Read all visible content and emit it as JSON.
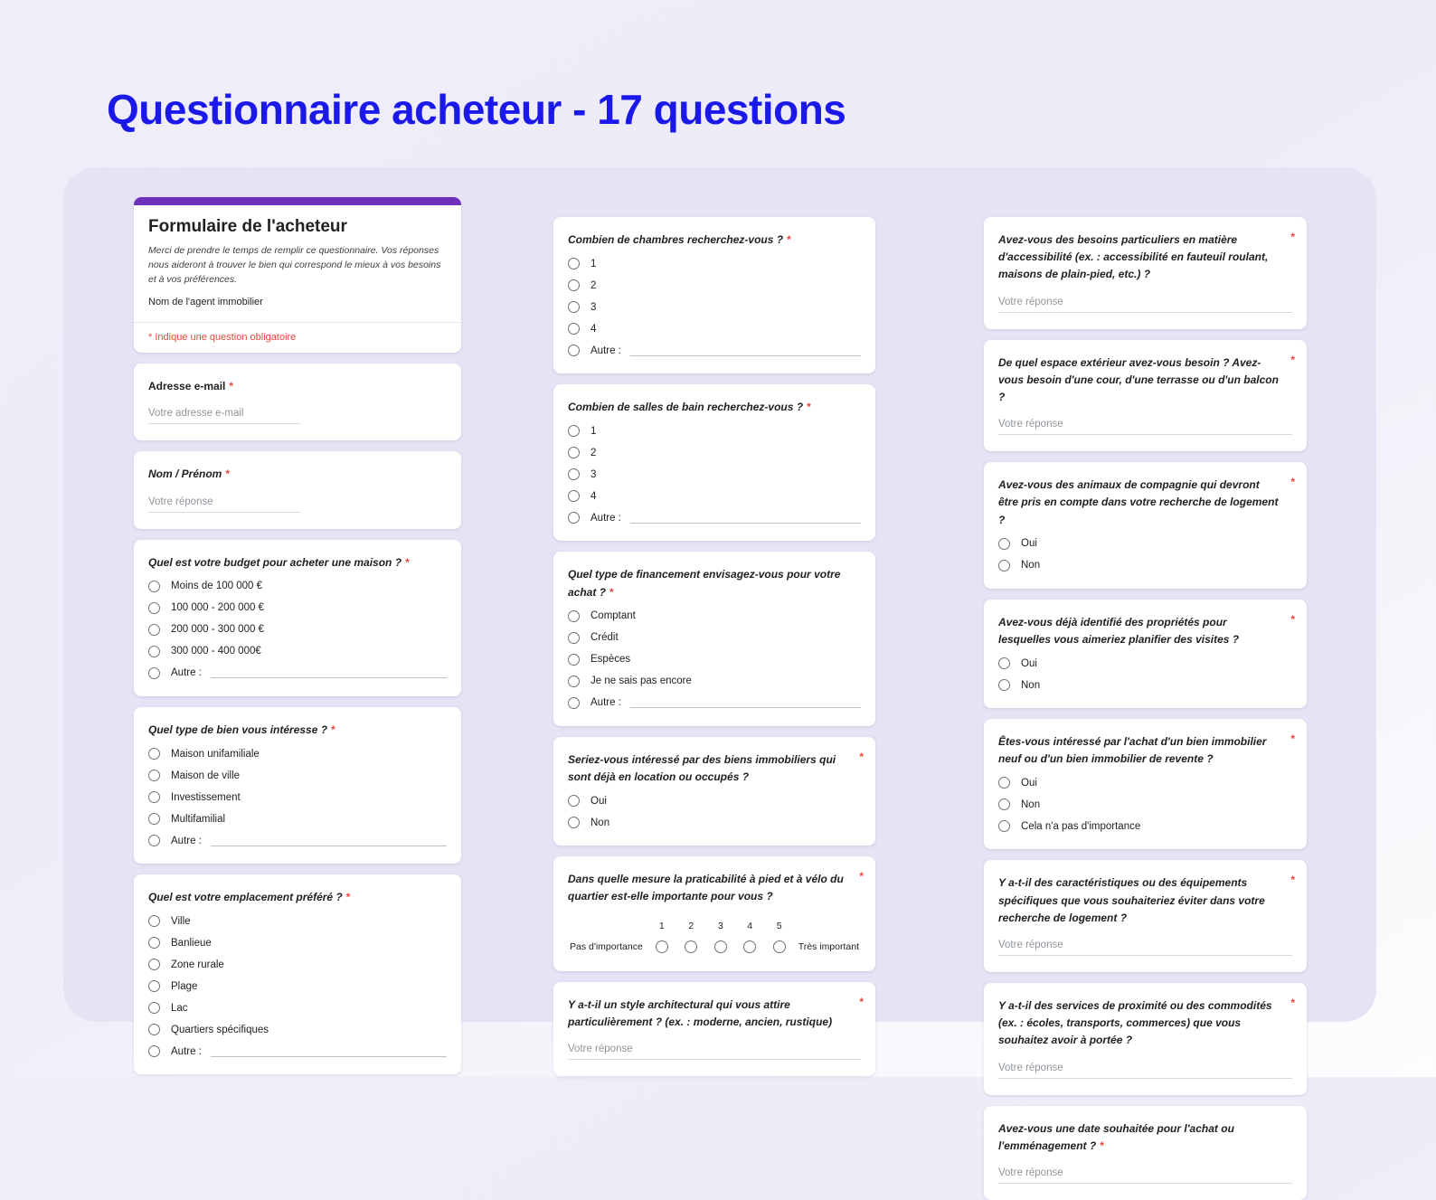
{
  "page": {
    "title": "Questionnaire acheteur - 17 questions"
  },
  "colors": {
    "title_blue": "#1b18ea",
    "accent_purple": "#6d30ba",
    "required_red": "#e8463c",
    "panel_lavender": "#e6e3f5"
  },
  "form": {
    "header": {
      "title": "Formulaire de l'acheteur",
      "description": "Merci de prendre le temps de remplir ce questionnaire. Vos réponses nous aideront à trouver le bien qui correspond le mieux à vos besoins et à vos préférences.",
      "agent_label": "Nom de l'agent immobilier",
      "required_note": "* Indique une question obligatoire"
    },
    "columns": [
      {
        "questions": [
          {
            "type": "text",
            "title": "Adresse e-mail",
            "required": true,
            "plain_title": true,
            "short": true,
            "placeholder": "Votre adresse e-mail"
          },
          {
            "type": "text",
            "title": "Nom / Prénom",
            "required": true,
            "short": true,
            "placeholder": "Votre réponse"
          },
          {
            "type": "radio",
            "title": "Quel est votre budget pour acheter une maison ?",
            "required": true,
            "options": [
              "Moins de 100 000 €",
              "100 000 - 200 000 €",
              "200 000 - 300 000 €",
              "300 000 - 400 000€"
            ],
            "other_label": "Autre :"
          },
          {
            "type": "radio",
            "title": "Quel type de bien vous intéresse ?",
            "required": true,
            "options": [
              "Maison unifamiliale",
              "Maison de ville",
              "Investissement",
              "Multifamilial"
            ],
            "other_label": "Autre :"
          },
          {
            "type": "radio",
            "title": "Quel est votre emplacement préféré ?",
            "required": true,
            "options": [
              "Ville",
              "Banlieue",
              "Zone rurale",
              "Plage",
              "Lac",
              "Quartiers spécifiques"
            ],
            "other_label": "Autre :"
          }
        ]
      },
      {
        "questions": [
          {
            "type": "radio",
            "title": "Combien de chambres recherchez-vous ?",
            "required": true,
            "options": [
              "1",
              "2",
              "3",
              "4"
            ],
            "other_label": "Autre :"
          },
          {
            "type": "radio",
            "title": "Combien de salles de bain recherchez-vous ?",
            "required": true,
            "options": [
              "1",
              "2",
              "3",
              "4"
            ],
            "other_label": "Autre :"
          },
          {
            "type": "radio",
            "title": "Quel type de financement envisagez-vous pour votre achat ?",
            "required": true,
            "options": [
              "Comptant",
              "Crédit",
              "Espèces",
              "Je ne sais pas encore"
            ],
            "other_label": "Autre :"
          },
          {
            "type": "radio",
            "title": "Seriez-vous intéressé par des biens immobiliers qui sont déjà en location ou occupés ?",
            "required": true,
            "star_right": true,
            "options": [
              "Oui",
              "Non"
            ]
          },
          {
            "type": "scale",
            "title": "Dans quelle mesure la praticabilité à pied et à vélo du quartier est-elle importante pour vous ?",
            "required": true,
            "star_right": true,
            "scale_ticks": [
              "1",
              "2",
              "3",
              "4",
              "5"
            ],
            "low_label": "Pas d'importance",
            "high_label": "Très important"
          },
          {
            "type": "text",
            "title": "Y a-t-il un style architectural qui vous attire particulièrement ? (ex. : moderne, ancien, rustique)",
            "required": true,
            "star_right": true,
            "placeholder": "Votre réponse"
          }
        ]
      },
      {
        "questions": [
          {
            "type": "text",
            "title": "Avez-vous des besoins particuliers en matière d'accessibilité (ex. : accessibilité en fauteuil roulant, maisons de plain-pied, etc.) ?",
            "required": true,
            "star_right": true,
            "placeholder": "Votre réponse"
          },
          {
            "type": "text",
            "title": "De quel espace extérieur avez-vous besoin ? Avez-vous besoin d'une cour, d'une terrasse ou d'un balcon ?",
            "required": true,
            "star_right": true,
            "placeholder": "Votre réponse"
          },
          {
            "type": "radio",
            "title": "Avez-vous des animaux de compagnie qui devront être pris en compte dans votre recherche de logement ?",
            "required": true,
            "star_right": true,
            "options": [
              "Oui",
              "Non"
            ]
          },
          {
            "type": "radio",
            "title": "Avez-vous déjà identifié des propriétés pour lesquelles vous aimeriez planifier des visites ?",
            "required": true,
            "star_right": true,
            "options": [
              "Oui",
              "Non"
            ]
          },
          {
            "type": "radio",
            "title": "Êtes-vous intéressé par l'achat d'un bien immobilier neuf ou d'un bien immobilier de revente ?",
            "required": true,
            "star_right": true,
            "options": [
              "Oui",
              "Non",
              "Cela n'a pas d'importance"
            ]
          },
          {
            "type": "text",
            "title": "Y a-t-il des caractéristiques ou des équipements spécifiques que vous souhaiteriez éviter dans votre recherche de logement ?",
            "required": true,
            "star_right": true,
            "placeholder": "Votre réponse"
          },
          {
            "type": "text",
            "title": "Y a-t-il des services de proximité ou des commodités (ex. : écoles, transports, commerces) que vous souhaitez avoir à portée ?",
            "required": true,
            "star_right": true,
            "placeholder": "Votre réponse"
          },
          {
            "type": "text",
            "title": "Avez-vous une date souhaitée pour l'achat ou l'emménagement ?",
            "required": true,
            "placeholder": "Votre réponse"
          }
        ]
      }
    ]
  }
}
